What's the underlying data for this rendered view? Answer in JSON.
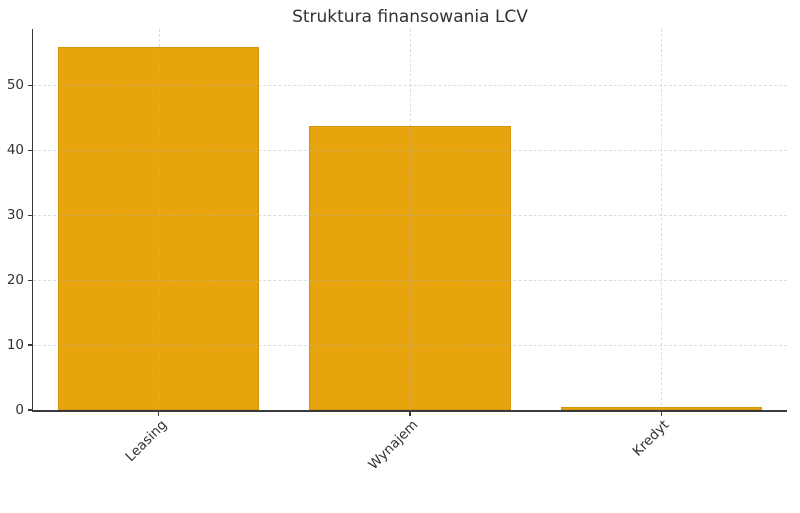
{
  "chart_data": {
    "type": "bar",
    "title": "Struktura finansowania LCV",
    "categories": [
      "Leasing",
      "Wynajem",
      "Kredyt"
    ],
    "values": [
      55.9,
      43.7,
      0.5
    ],
    "xlabel": "",
    "ylabel": "",
    "ylim": [
      0,
      58.7
    ],
    "yticks": [
      0,
      10,
      20,
      30,
      40,
      50
    ],
    "grid": true,
    "grid_style": "dashed",
    "grid_over_bars": true,
    "legend_position": "none",
    "bar_color": "#E8A40C",
    "bar_edge_color": "#D4950A",
    "axis_color": "#3A3A3A",
    "grid_color": "#B5B5B5",
    "text_color": "#333333",
    "x_tick_rotation_deg": 45
  }
}
